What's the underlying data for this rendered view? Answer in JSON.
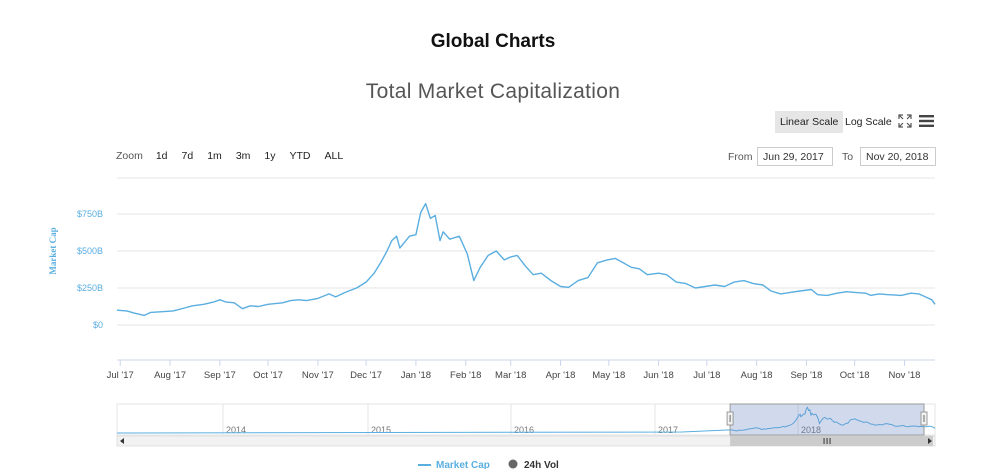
{
  "page_title": "Global Charts",
  "chart_title": "Total Market Capitalization",
  "controls": {
    "linear_scale": "Linear Scale",
    "log_scale": "Log Scale",
    "zoom_label": "Zoom",
    "zoom_options": [
      "1d",
      "7d",
      "1m",
      "3m",
      "1y",
      "YTD",
      "ALL"
    ],
    "from_label": "From",
    "from_value": "Jun 29, 2017",
    "to_label": "To",
    "to_value": "Nov 20, 2018"
  },
  "colors": {
    "market_cap_line": "#5aaee0",
    "vol_marker": "#666666",
    "navigator_mask": "rgba(102,133,194,0.3)"
  },
  "chart_data": {
    "type": "line",
    "title": "Total Market Capitalization",
    "ylabel": "Market Cap",
    "xlabel": "",
    "y_unit": "USD billions",
    "y_ticks": [
      "$0",
      "$250B",
      "$500B",
      "$750B"
    ],
    "y_tick_values": [
      0,
      250,
      500,
      750
    ],
    "x_ticks": [
      "Jul '17",
      "Aug '17",
      "Sep '17",
      "Oct '17",
      "Nov '17",
      "Dec '17",
      "Jan '18",
      "Feb '18",
      "Mar '18",
      "Apr '18",
      "May '18",
      "Jun '18",
      "Jul '18",
      "Aug '18",
      "Sep '18",
      "Oct '18",
      "Nov '18"
    ],
    "x_range": [
      "2017-06-29",
      "2018-11-20"
    ],
    "legend": [
      "Market Cap",
      "24h Vol"
    ],
    "legend_position": "bottom",
    "series": [
      {
        "name": "Market Cap",
        "values": [
          [
            "2017-06-29",
            100
          ],
          [
            "2017-07-05",
            95
          ],
          [
            "2017-07-10",
            80
          ],
          [
            "2017-07-16",
            65
          ],
          [
            "2017-07-20",
            85
          ],
          [
            "2017-07-27",
            90
          ],
          [
            "2017-08-03",
            95
          ],
          [
            "2017-08-10",
            115
          ],
          [
            "2017-08-15",
            130
          ],
          [
            "2017-08-22",
            140
          ],
          [
            "2017-08-28",
            155
          ],
          [
            "2017-09-01",
            170
          ],
          [
            "2017-09-05",
            155
          ],
          [
            "2017-09-10",
            150
          ],
          [
            "2017-09-15",
            110
          ],
          [
            "2017-09-20",
            130
          ],
          [
            "2017-09-25",
            125
          ],
          [
            "2017-10-01",
            140
          ],
          [
            "2017-10-10",
            150
          ],
          [
            "2017-10-15",
            165
          ],
          [
            "2017-10-20",
            170
          ],
          [
            "2017-10-25",
            165
          ],
          [
            "2017-11-01",
            180
          ],
          [
            "2017-11-08",
            210
          ],
          [
            "2017-11-12",
            190
          ],
          [
            "2017-11-18",
            220
          ],
          [
            "2017-11-25",
            250
          ],
          [
            "2017-12-01",
            290
          ],
          [
            "2017-12-06",
            350
          ],
          [
            "2017-12-10",
            420
          ],
          [
            "2017-12-14",
            500
          ],
          [
            "2017-12-17",
            570
          ],
          [
            "2017-12-20",
            600
          ],
          [
            "2017-12-22",
            520
          ],
          [
            "2017-12-25",
            560
          ],
          [
            "2017-12-28",
            600
          ],
          [
            "2018-01-01",
            610
          ],
          [
            "2018-01-04",
            760
          ],
          [
            "2018-01-07",
            820
          ],
          [
            "2018-01-10",
            720
          ],
          [
            "2018-01-13",
            740
          ],
          [
            "2018-01-16",
            570
          ],
          [
            "2018-01-18",
            630
          ],
          [
            "2018-01-22",
            580
          ],
          [
            "2018-01-28",
            600
          ],
          [
            "2018-02-02",
            480
          ],
          [
            "2018-02-06",
            300
          ],
          [
            "2018-02-10",
            390
          ],
          [
            "2018-02-15",
            470
          ],
          [
            "2018-02-20",
            500
          ],
          [
            "2018-02-25",
            440
          ],
          [
            "2018-03-01",
            460
          ],
          [
            "2018-03-05",
            470
          ],
          [
            "2018-03-10",
            400
          ],
          [
            "2018-03-15",
            340
          ],
          [
            "2018-03-20",
            350
          ],
          [
            "2018-03-26",
            300
          ],
          [
            "2018-04-01",
            260
          ],
          [
            "2018-04-06",
            255
          ],
          [
            "2018-04-12",
            300
          ],
          [
            "2018-04-18",
            320
          ],
          [
            "2018-04-24",
            420
          ],
          [
            "2018-04-30",
            440
          ],
          [
            "2018-05-05",
            450
          ],
          [
            "2018-05-10",
            420
          ],
          [
            "2018-05-15",
            390
          ],
          [
            "2018-05-20",
            380
          ],
          [
            "2018-05-25",
            340
          ],
          [
            "2018-06-01",
            350
          ],
          [
            "2018-06-06",
            340
          ],
          [
            "2018-06-12",
            290
          ],
          [
            "2018-06-18",
            280
          ],
          [
            "2018-06-24",
            250
          ],
          [
            "2018-06-30",
            260
          ],
          [
            "2018-07-06",
            270
          ],
          [
            "2018-07-12",
            260
          ],
          [
            "2018-07-18",
            290
          ],
          [
            "2018-07-24",
            300
          ],
          [
            "2018-07-30",
            280
          ],
          [
            "2018-08-05",
            270
          ],
          [
            "2018-08-10",
            230
          ],
          [
            "2018-08-16",
            210
          ],
          [
            "2018-08-22",
            220
          ],
          [
            "2018-08-28",
            230
          ],
          [
            "2018-09-04",
            240
          ],
          [
            "2018-09-08",
            205
          ],
          [
            "2018-09-14",
            200
          ],
          [
            "2018-09-20",
            215
          ],
          [
            "2018-09-26",
            225
          ],
          [
            "2018-10-01",
            220
          ],
          [
            "2018-10-08",
            215
          ],
          [
            "2018-10-11",
            200
          ],
          [
            "2018-10-16",
            210
          ],
          [
            "2018-10-22",
            205
          ],
          [
            "2018-10-30",
            200
          ],
          [
            "2018-11-05",
            215
          ],
          [
            "2018-11-10",
            210
          ],
          [
            "2018-11-14",
            190
          ],
          [
            "2018-11-18",
            170
          ],
          [
            "2018-11-20",
            140
          ]
        ]
      }
    ],
    "navigator": {
      "year_labels": [
        "2014",
        "2015",
        "2016",
        "2017",
        "2018"
      ],
      "selected_range": [
        "2017-06-29",
        "2018-11-20"
      ]
    }
  }
}
